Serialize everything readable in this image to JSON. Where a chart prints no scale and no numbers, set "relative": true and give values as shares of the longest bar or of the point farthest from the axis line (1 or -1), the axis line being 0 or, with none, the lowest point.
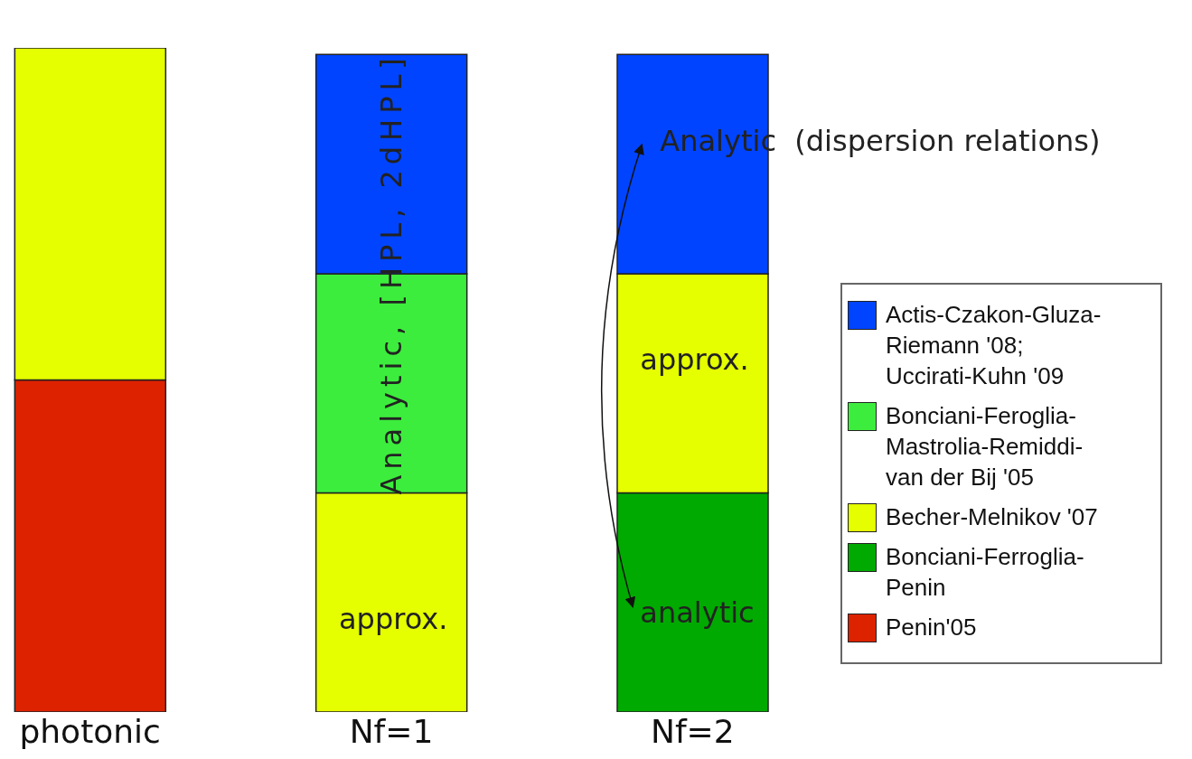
{
  "chart_data": {
    "type": "bar",
    "stacked": true,
    "relative": true,
    "categories": [
      "photonic",
      "Nf=1",
      "Nf=2"
    ],
    "series": [
      {
        "name": "Penin'05",
        "color": "#dd2200",
        "values": [
          0.5,
          0,
          0
        ]
      },
      {
        "name": "Bonciani-Ferroglia-Penin",
        "color": "#00aa00",
        "values": [
          0,
          0,
          0.33
        ]
      },
      {
        "name": "Becher-Melnikov '07",
        "color": "#e5ff00",
        "values": [
          0.5,
          0.33,
          0.33
        ]
      },
      {
        "name": "Bonciani-Feroglia-Mastrolia-Remiddi-van der Bij '05",
        "color": "#3ded3d",
        "values": [
          0,
          0.33,
          0
        ]
      },
      {
        "name": "Actis-Czakon-Gluza-Riemann '08; Uccirati-Kuhn '09",
        "color": "#0044ff",
        "values": [
          0,
          0.33,
          0.33
        ]
      }
    ],
    "legend": "right",
    "annotations": [
      "Analytic, [HPL, 2dHPL]",
      "approx.",
      "Analytic  (dispersion relations)",
      "approx.",
      "analytic"
    ]
  }
}
